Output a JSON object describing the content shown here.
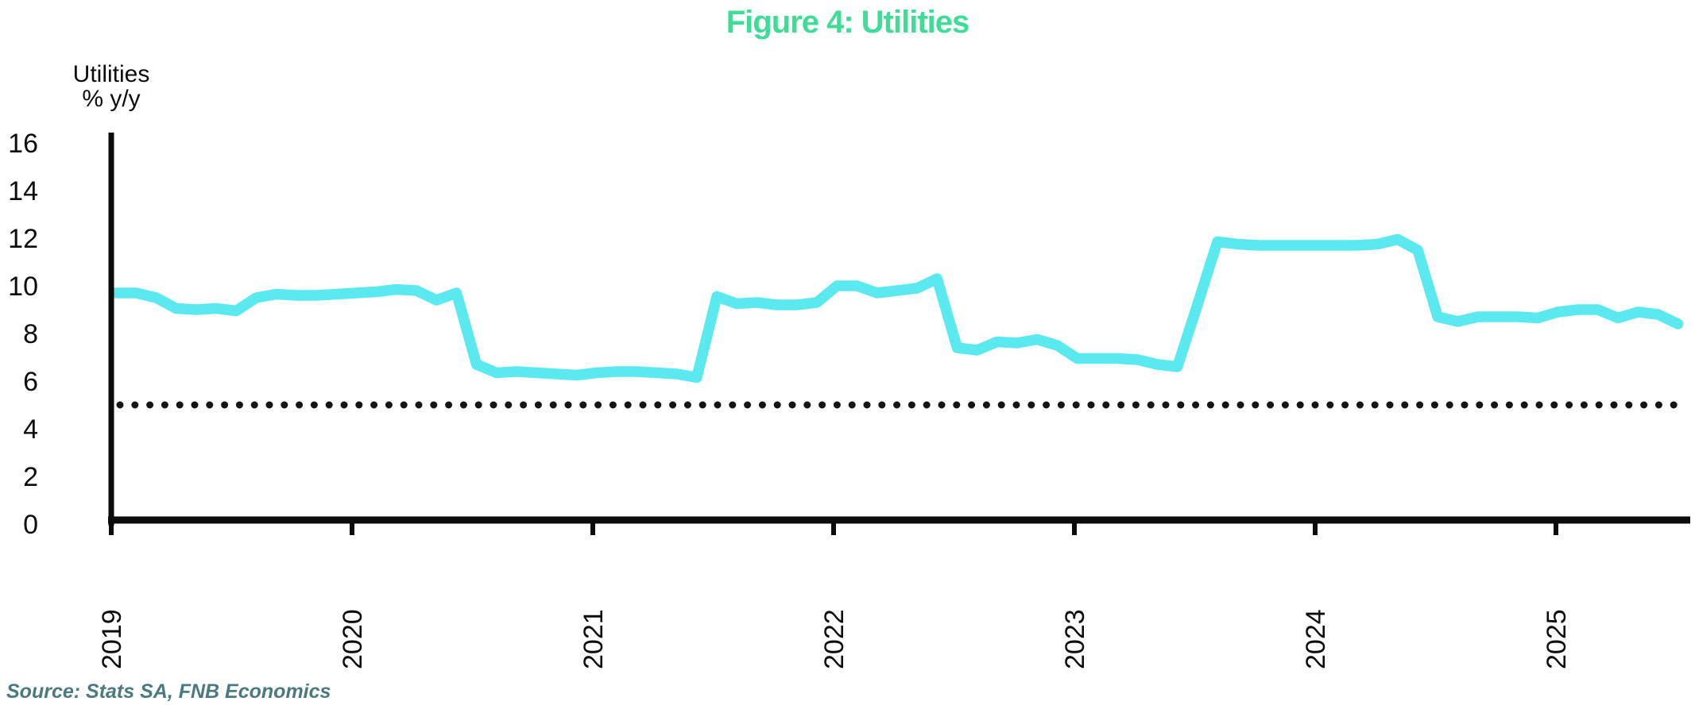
{
  "title": "Figure 4: Utilities",
  "source_note": "Source: Stats SA, FNB Economics",
  "y_axis": {
    "header_line1": "Utilities",
    "header_line2": "% y/y",
    "tick_labels": [
      "16",
      "14",
      "12",
      "10",
      "8",
      "6",
      "4",
      "2",
      "0"
    ]
  },
  "x_axis": {
    "tick_labels": [
      "2019",
      "2020",
      "2021",
      "2022",
      "2023",
      "2024",
      "2025"
    ]
  },
  "colors": {
    "title": "#3EDC96",
    "series_line": "#5BE9F0",
    "axis": "#0B0B0B",
    "tick_text": "#0C0C0C",
    "reference_line": "#141414",
    "source_text": "#4A7A7F"
  },
  "chart_data": {
    "type": "line",
    "title": "Figure 4: Utilities",
    "xlabel": "",
    "ylabel": "Utilities % y/y",
    "ylim": [
      0,
      16
    ],
    "y_tick_values": [
      0,
      2,
      4,
      6,
      8,
      10,
      12,
      14,
      16
    ],
    "x_tick_labels": [
      "2019",
      "2020",
      "2021",
      "2022",
      "2023",
      "2024",
      "2025"
    ],
    "frequency": "monthly",
    "x_start": "2019-01",
    "x_end": "2025-07",
    "grid": false,
    "legend_position": "none",
    "reference_line": {
      "value": 5,
      "style": "dotted"
    },
    "series": [
      {
        "name": "Utilities % y/y",
        "values": [
          9.7,
          9.7,
          9.5,
          9.05,
          9.0,
          9.05,
          8.95,
          9.5,
          9.65,
          9.6,
          9.6,
          9.65,
          9.7,
          9.75,
          9.85,
          9.8,
          9.4,
          9.7,
          6.7,
          6.35,
          6.4,
          6.35,
          6.3,
          6.25,
          6.35,
          6.4,
          6.4,
          6.35,
          6.3,
          6.15,
          9.55,
          9.25,
          9.3,
          9.2,
          9.2,
          9.3,
          10.0,
          10.0,
          9.7,
          9.8,
          9.9,
          10.3,
          7.4,
          7.3,
          7.65,
          7.6,
          7.75,
          7.5,
          6.95,
          6.95,
          6.95,
          6.9,
          6.7,
          6.6,
          9.2,
          11.85,
          11.75,
          11.7,
          11.7,
          11.7,
          11.7,
          11.7,
          11.7,
          11.75,
          11.95,
          11.5,
          8.7,
          8.5,
          8.7,
          8.7,
          8.7,
          8.65,
          8.9,
          9.0,
          9.0,
          8.65,
          8.9,
          8.8,
          8.4
        ]
      }
    ]
  }
}
